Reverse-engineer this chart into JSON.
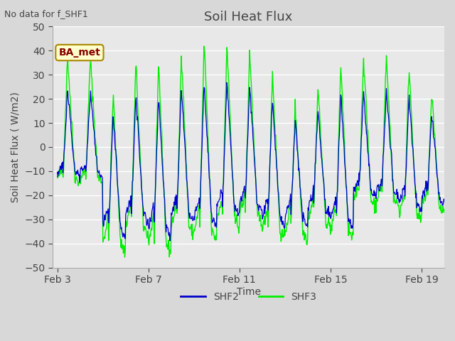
{
  "title": "Soil Heat Flux",
  "note": "No data for f_SHF1",
  "ylabel": "Soil Heat Flux ( W/m2)",
  "xlabel": "Time",
  "ylim": [
    -50,
    50
  ],
  "yticks": [
    -50,
    -40,
    -30,
    -20,
    -10,
    0,
    10,
    20,
    30,
    40,
    50
  ],
  "xtick_labels": [
    "Feb 3",
    "Feb 7",
    "Feb 11",
    "Feb 15",
    "Feb 19"
  ],
  "xtick_positions": [
    0,
    4,
    8,
    12,
    16
  ],
  "xlim": [
    -0.2,
    17.0
  ],
  "shf2_color": "#0000cc",
  "shf3_color": "#00ee00",
  "fig_bg_color": "#d8d8d8",
  "plot_bg_color": "#e8e8e8",
  "annotation_text": "BA_met",
  "annotation_bg": "#ffffcc",
  "annotation_border": "#aa0000",
  "grid_color": "#ffffff",
  "n_days": 17,
  "n_per_day": 48
}
